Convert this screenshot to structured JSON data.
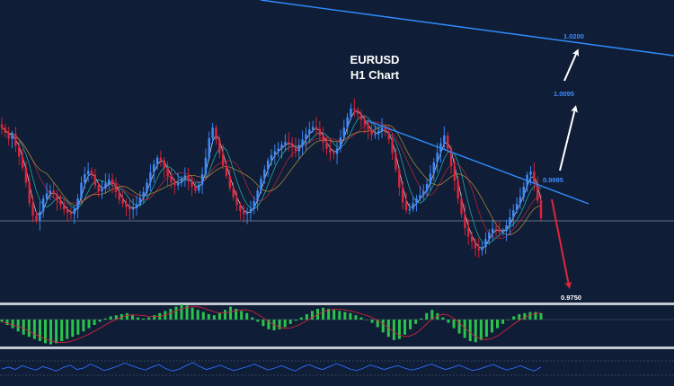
{
  "chart_data": {
    "type": "candlestick",
    "title": "EURUSD",
    "subtitle": "H1 Chart",
    "levels": [
      {
        "name": "target-3",
        "value": "1.0200",
        "color": "#3d8bff"
      },
      {
        "name": "target-2",
        "value": "1.0095",
        "color": "#3d8bff"
      },
      {
        "name": "target-1",
        "value": "0.9985",
        "color": "#3d8bff"
      },
      {
        "name": "downside-target",
        "value": "0.9750",
        "color": "#ffffff"
      }
    ],
    "closes": [
      1.0036,
      1.0028,
      1.0019,
      1.0026,
      1.0008,
      0.9992,
      0.9975,
      0.9952,
      0.9921,
      0.9902,
      0.9895,
      0.9908,
      0.9928,
      0.9936,
      0.994,
      0.9935,
      0.9925,
      0.9918,
      0.9911,
      0.9906,
      0.9904,
      0.9912,
      0.9928,
      0.9952,
      0.9965,
      0.997,
      0.9964,
      0.9948,
      0.9939,
      0.9943,
      0.9951,
      0.9957,
      0.995,
      0.9938,
      0.9926,
      0.992,
      0.9915,
      0.9911,
      0.9913,
      0.9919,
      0.9929,
      0.9938,
      0.9952,
      0.9968,
      0.998,
      0.999,
      0.9986,
      0.9975,
      0.9962,
      0.9953,
      0.9948,
      0.9952,
      0.9958,
      0.9963,
      0.9955,
      0.9946,
      0.994,
      0.9949,
      0.9965,
      0.999,
      1.002,
      1.0036,
      1.0018,
      0.9997,
      0.9978,
      0.9962,
      0.9944,
      0.993,
      0.9918,
      0.9909,
      0.9904,
      0.9906,
      0.9912,
      0.9924,
      0.994,
      0.9958,
      0.9972,
      0.9986,
      0.9994,
      1.0,
      1.0004,
      1.001,
      1.0014,
      1.0012,
      1.0006,
      1.0,
      1.0009,
      1.0018,
      1.0026,
      1.0033,
      1.0037,
      1.0034,
      1.0024,
      1.0013,
      1.0004,
      0.9998,
      0.9996,
      1.0004,
      1.0021,
      1.0036,
      1.0052,
      1.0065,
      1.0063,
      1.0057,
      1.0048,
      1.004,
      1.0033,
      1.0025,
      1.0026,
      1.0031,
      1.0036,
      1.0029,
      1.0018,
      0.9997,
      0.9972,
      0.9945,
      0.9922,
      0.991,
      0.9912,
      0.9921,
      0.9928,
      0.9933,
      0.9939,
      0.995,
      0.9966,
      0.9983,
      0.9998,
      1.0012,
      1.0024,
      1.0004,
      0.9978,
      0.9955,
      0.9928,
      0.9904,
      0.9883,
      0.987,
      0.9862,
      0.9852,
      0.9849,
      0.9854,
      0.9866,
      0.9876,
      0.9882,
      0.9881,
      0.9877,
      0.9878,
      0.9887,
      0.9899,
      0.991,
      0.992,
      0.993,
      0.9946,
      0.9964,
      0.9969,
      0.9951,
      0.9925,
      0.9898
    ],
    "macd_histogram": [
      -0.2,
      -0.5,
      -0.8,
      -1.1,
      -1.4,
      -1.6,
      -1.8,
      -2.0,
      -2.2,
      -2.3,
      -2.2,
      -2.0,
      -1.8,
      -1.6,
      -1.4,
      -1.1,
      -0.8,
      -0.5,
      -0.2,
      0.1,
      0.3,
      0.4,
      0.5,
      0.6,
      0.4,
      0.2,
      0.1,
      0.2,
      0.4,
      0.6,
      0.8,
      1.0,
      1.2,
      1.4,
      1.3,
      1.1,
      0.9,
      0.7,
      0.5,
      0.4,
      0.6,
      0.9,
      1.2,
      1.0,
      0.8,
      0.6,
      0.2,
      -0.2,
      -0.6,
      -0.9,
      -1.0,
      -0.9,
      -0.7,
      -0.4,
      -0.1,
      0.2,
      0.5,
      0.8,
      1.0,
      1.1,
      1.0,
      0.9,
      0.8,
      0.7,
      0.6,
      0.4,
      0.2,
      0.0,
      -0.3,
      -0.7,
      -1.2,
      -1.6,
      -1.9,
      -1.8,
      -1.4,
      -0.9,
      -0.4,
      0.1,
      0.6,
      0.9,
      0.6,
      0.2,
      -0.3,
      -0.8,
      -1.3,
      -1.7,
      -2.0,
      -2.1,
      -1.9,
      -1.6,
      -1.2,
      -0.8,
      -0.4,
      0.0,
      0.3,
      0.5,
      0.6,
      0.7,
      0.7,
      0.6
    ],
    "rsi": [
      48,
      52,
      47,
      55,
      50,
      46,
      53,
      49,
      44,
      51,
      56,
      47,
      50,
      58,
      52,
      45,
      49,
      54,
      60,
      55,
      50,
      46,
      52,
      57,
      49,
      44,
      48,
      55,
      61,
      53,
      47,
      51,
      56,
      50,
      45,
      49,
      53,
      58,
      52,
      46,
      50,
      55,
      49,
      44,
      52,
      57,
      51,
      47,
      53,
      59,
      54,
      48,
      45,
      50,
      56,
      52,
      47,
      51,
      55,
      50,
      46,
      49,
      54,
      58,
      52,
      47,
      51,
      56,
      50,
      45,
      48,
      53,
      57,
      51,
      46,
      50,
      55,
      49,
      44,
      52
    ]
  },
  "colors": {
    "background": "#0f1e36",
    "bull": "#3d8bff",
    "bear": "#e0243c",
    "trend": "#2f8cff",
    "hist": "#2bc24e",
    "separator": "#c3c9d2"
  }
}
